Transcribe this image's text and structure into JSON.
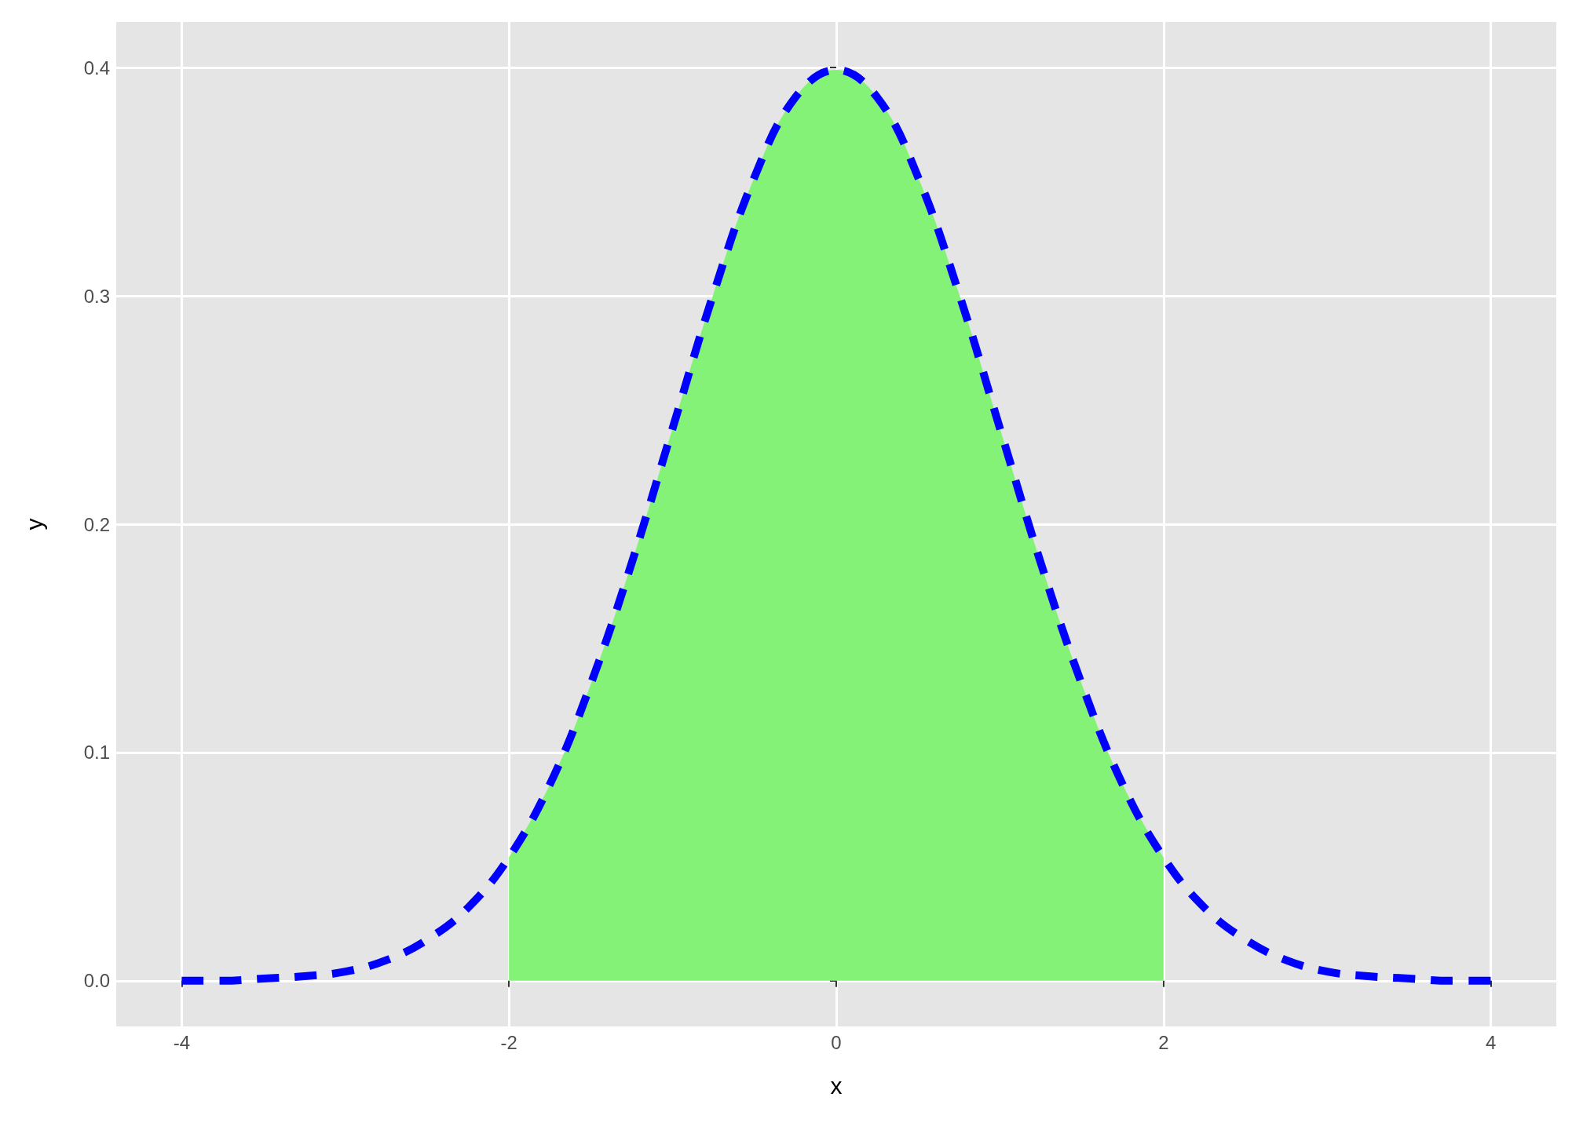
{
  "chart_data": {
    "type": "line",
    "xlabel": "x",
    "ylabel": "y",
    "xlim": [
      -4.4,
      4.4
    ],
    "ylim": [
      -0.02,
      0.42
    ],
    "xticks": [
      -4,
      -2,
      0,
      2,
      4
    ],
    "yticks": [
      {
        "value": 0,
        "label": "0.0"
      },
      0.1,
      0.2,
      0.3,
      0.4
    ],
    "grid": true,
    "marker": "none",
    "series": [
      {
        "type": "area",
        "color": "#84f276",
        "x": [
          -2,
          -1.75,
          -1.5,
          -1.25,
          -1,
          -0.75,
          -0.5,
          -0.25,
          0,
          0.25,
          0.5,
          0.75,
          1,
          1.25,
          1.5,
          1.75,
          2
        ],
        "values": [
          0.054,
          0.086,
          0.13,
          0.183,
          0.242,
          0.301,
          0.352,
          0.387,
          0.399,
          0.387,
          0.352,
          0.301,
          0.242,
          0.183,
          0.13,
          0.086,
          0.054
        ]
      },
      {
        "color": "#0000ff",
        "line_style": "dashed",
        "x": [
          -4,
          -3.75,
          -3.5,
          -3.25,
          -3,
          -2.75,
          -2.5,
          -2.25,
          -2,
          -1.75,
          -1.5,
          -1.25,
          -1,
          -0.75,
          -0.5,
          -0.25,
          0,
          0.25,
          0.5,
          0.75,
          1,
          1.25,
          1.5,
          1.75,
          2,
          2.25,
          2.5,
          2.75,
          3,
          3.25,
          3.5,
          3.75,
          4
        ],
        "values": [
          0.0,
          0.0,
          0.001,
          0.002,
          0.004,
          0.009,
          0.018,
          0.032,
          0.054,
          0.086,
          0.13,
          0.183,
          0.242,
          0.301,
          0.352,
          0.387,
          0.399,
          0.387,
          0.352,
          0.301,
          0.242,
          0.183,
          0.13,
          0.086,
          0.054,
          0.032,
          0.018,
          0.009,
          0.004,
          0.002,
          0.001,
          0.0,
          0.0
        ]
      }
    ]
  }
}
